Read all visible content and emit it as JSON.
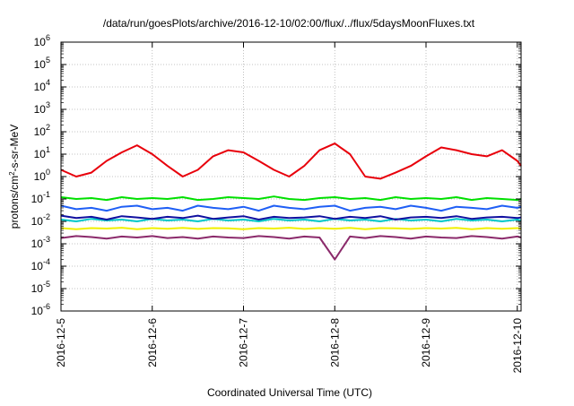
{
  "chart_data": {
    "type": "line",
    "title": "/data/run/goesPlots/archive/2016-12-10/02:00/flux/../flux/5daysMoonFluxes.txt",
    "xlabel": "Coordinated Universal Time (UTC)",
    "ylabel": {
      "base": "protons/cm",
      "sup": "2",
      "rest": "-s-sr-MeV"
    },
    "yscale": "log",
    "ylim": [
      1e-06,
      1000000.0
    ],
    "xlim": [
      "2016-12-05",
      "2016-12-10 01:00"
    ],
    "grid": true,
    "legend": "none",
    "x_ticks": [
      "2016-12-5",
      "2016-12-6",
      "2016-12-7",
      "2016-12-8",
      "2016-12-9",
      "2016-12-10"
    ],
    "y_ticks": [
      {
        "base": "10",
        "exp": "-6"
      },
      {
        "base": "10",
        "exp": "-5"
      },
      {
        "base": "10",
        "exp": "-4"
      },
      {
        "base": "10",
        "exp": "-3"
      },
      {
        "base": "10",
        "exp": "-2"
      },
      {
        "base": "10",
        "exp": "-1"
      },
      {
        "base": "10",
        "exp": "0"
      },
      {
        "base": "10",
        "exp": "1"
      },
      {
        "base": "10",
        "exp": "2"
      },
      {
        "base": "10",
        "exp": "3"
      },
      {
        "base": "10",
        "exp": "4"
      },
      {
        "base": "10",
        "exp": "5"
      },
      {
        "base": "10",
        "exp": "6"
      }
    ],
    "series_x": [
      "2016-12-05 00:00",
      "2016-12-05 04:00",
      "2016-12-05 08:00",
      "2016-12-05 12:00",
      "2016-12-05 16:00",
      "2016-12-05 20:00",
      "2016-12-06 00:00",
      "2016-12-06 04:00",
      "2016-12-06 08:00",
      "2016-12-06 12:00",
      "2016-12-06 16:00",
      "2016-12-06 20:00",
      "2016-12-07 00:00",
      "2016-12-07 04:00",
      "2016-12-07 08:00",
      "2016-12-07 12:00",
      "2016-12-07 16:00",
      "2016-12-07 20:00",
      "2016-12-08 00:00",
      "2016-12-08 04:00",
      "2016-12-08 08:00",
      "2016-12-08 12:00",
      "2016-12-08 16:00",
      "2016-12-08 20:00",
      "2016-12-09 00:00",
      "2016-12-09 04:00",
      "2016-12-09 08:00",
      "2016-12-09 12:00",
      "2016-12-09 16:00",
      "2016-12-09 20:00",
      "2016-12-10 00:00",
      "2016-12-10 01:00"
    ],
    "series": [
      {
        "color": "#e8000b",
        "values": [
          2,
          1,
          1.5,
          5,
          12,
          25,
          10,
          3,
          1,
          2,
          8,
          15,
          12,
          5,
          2,
          1,
          3,
          15,
          30,
          10,
          1,
          0.8,
          1.5,
          3,
          8,
          20,
          15,
          10,
          8,
          15,
          5,
          3
        ]
      },
      {
        "color": "#00e000",
        "values": [
          0.12,
          0.1,
          0.11,
          0.09,
          0.12,
          0.1,
          0.11,
          0.1,
          0.12,
          0.09,
          0.1,
          0.12,
          0.11,
          0.1,
          0.13,
          0.1,
          0.09,
          0.11,
          0.12,
          0.1,
          0.11,
          0.09,
          0.12,
          0.1,
          0.11,
          0.1,
          0.12,
          0.09,
          0.11,
          0.1,
          0.09,
          0.1
        ]
      },
      {
        "color": "#1f5ff5",
        "values": [
          0.05,
          0.035,
          0.04,
          0.03,
          0.045,
          0.05,
          0.035,
          0.04,
          0.03,
          0.05,
          0.04,
          0.035,
          0.045,
          0.03,
          0.05,
          0.04,
          0.035,
          0.045,
          0.05,
          0.03,
          0.04,
          0.045,
          0.035,
          0.05,
          0.04,
          0.03,
          0.045,
          0.04,
          0.035,
          0.05,
          0.04,
          0.045
        ]
      },
      {
        "color": "#00c8c8",
        "values": [
          0.012,
          0.01,
          0.013,
          0.011,
          0.012,
          0.01,
          0.013,
          0.011,
          0.012,
          0.01,
          0.013,
          0.011,
          0.012,
          0.01,
          0.013,
          0.011,
          0.012,
          0.01,
          0.013,
          0.011,
          0.012,
          0.01,
          0.013,
          0.011,
          0.012,
          0.01,
          0.013,
          0.011,
          0.012,
          0.01,
          0.012,
          0.011
        ]
      },
      {
        "color": "#1010a0",
        "values": [
          0.018,
          0.014,
          0.016,
          0.012,
          0.017,
          0.015,
          0.013,
          0.016,
          0.014,
          0.018,
          0.013,
          0.015,
          0.017,
          0.012,
          0.016,
          0.014,
          0.015,
          0.017,
          0.013,
          0.016,
          0.014,
          0.017,
          0.012,
          0.015,
          0.016,
          0.014,
          0.017,
          0.013,
          0.015,
          0.016,
          0.014,
          0.015
        ]
      },
      {
        "color": "#f0f000",
        "values": [
          0.005,
          0.0045,
          0.005,
          0.0048,
          0.0052,
          0.0045,
          0.005,
          0.0047,
          0.0051,
          0.0046,
          0.005,
          0.0049,
          0.0045,
          0.005,
          0.0048,
          0.0052,
          0.0046,
          0.005,
          0.0047,
          0.0051,
          0.0045,
          0.005,
          0.0049,
          0.0046,
          0.005,
          0.0048,
          0.0051,
          0.0045,
          0.005,
          0.0047,
          0.005,
          0.0048
        ]
      },
      {
        "color": "#8b2a6b",
        "values": [
          0.0018,
          0.0022,
          0.002,
          0.0017,
          0.0021,
          0.0019,
          0.0022,
          0.0018,
          0.002,
          0.0017,
          0.0021,
          0.0019,
          0.0018,
          0.0022,
          0.002,
          0.0017,
          0.0021,
          0.0019,
          0.0002,
          0.0021,
          0.0018,
          0.0022,
          0.002,
          0.0017,
          0.0021,
          0.0019,
          0.0018,
          0.0022,
          0.002,
          0.0017,
          0.0021,
          0.0019
        ]
      }
    ]
  }
}
